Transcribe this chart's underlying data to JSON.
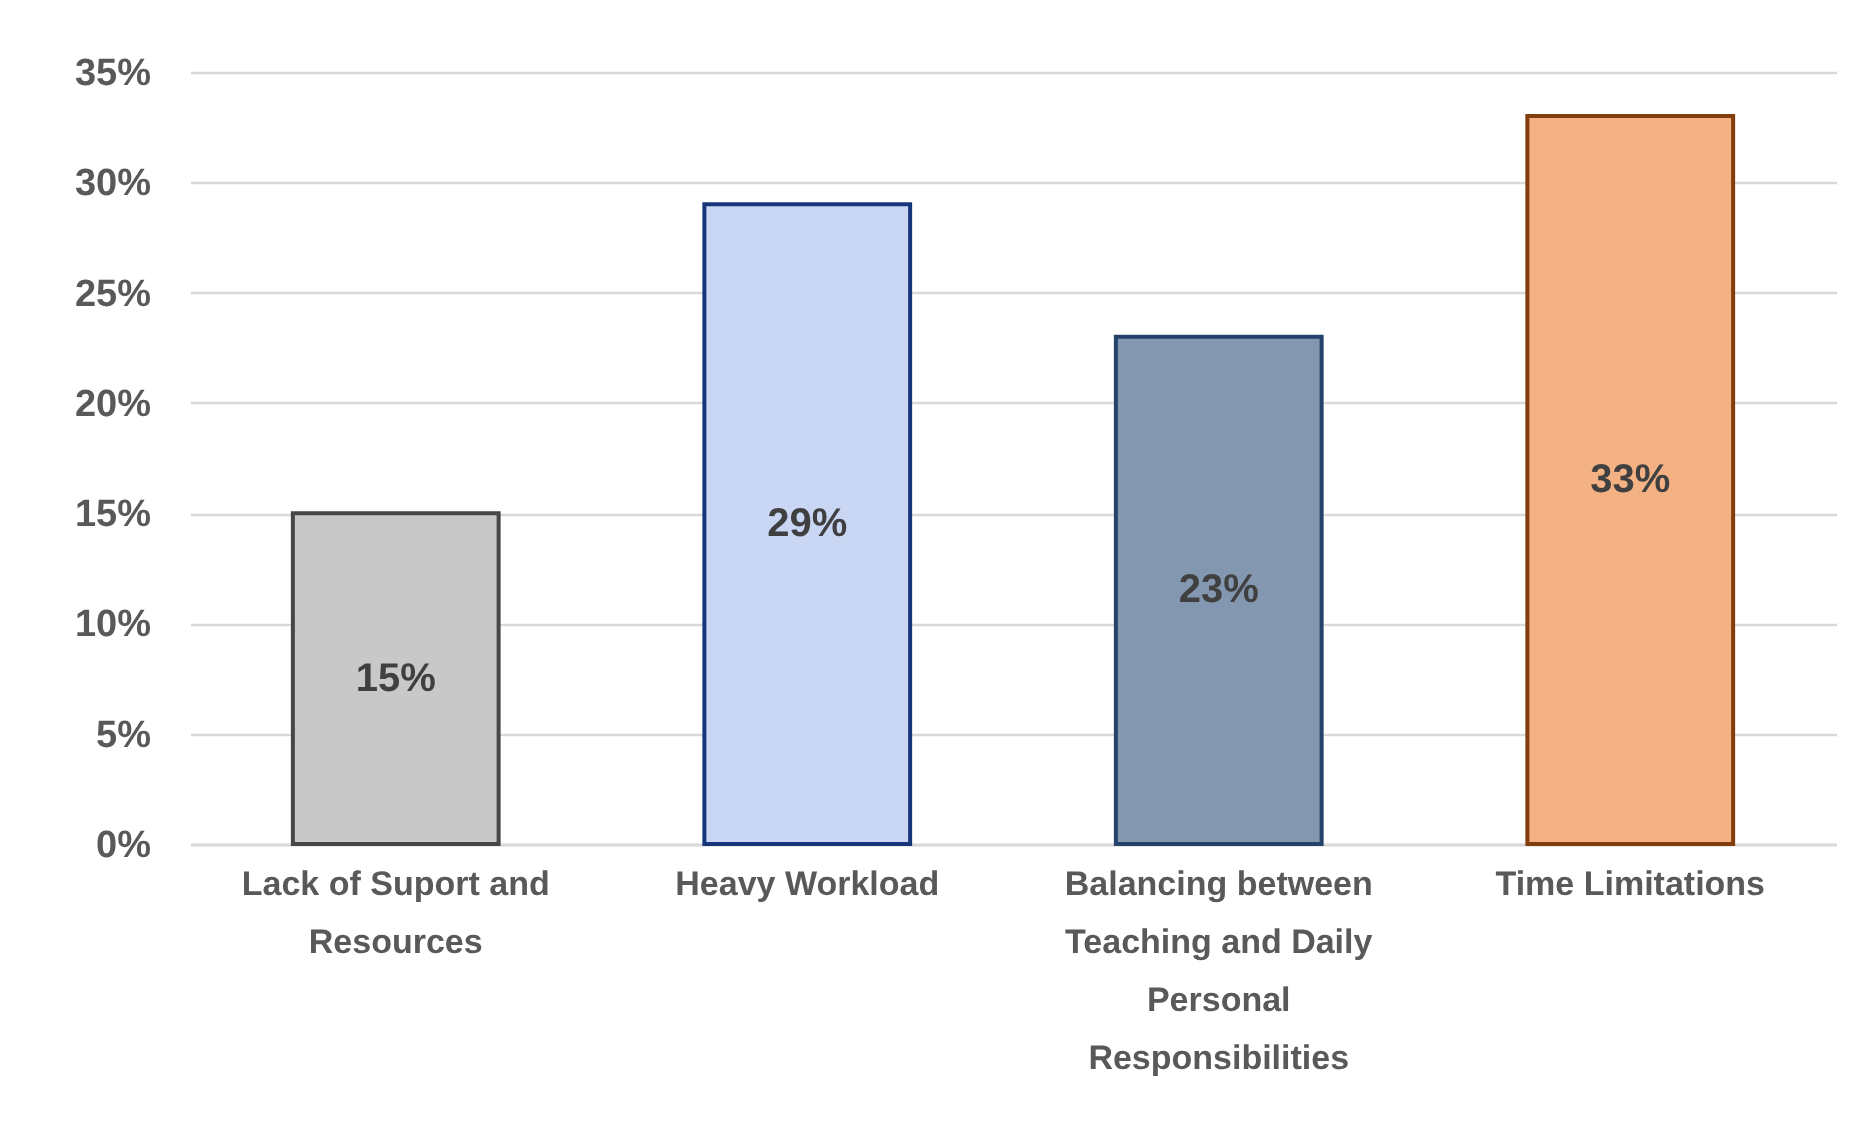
{
  "chart_data": {
    "type": "bar",
    "categories": [
      "Lack of Suport and Resources",
      "Heavy Workload",
      "Balancing between Teaching and Daily Personal Responsibilities",
      "Time Limitations"
    ],
    "values": [
      15,
      29,
      23,
      33
    ],
    "colors": [
      "#c8c8c8",
      "#c9d7f5",
      "#8497b0",
      "#f4b183"
    ],
    "value_labels": [
      "15%",
      "29%",
      "23%",
      "33%"
    ],
    "ylim": [
      0,
      35
    ],
    "yticks": [
      {
        "value": 0,
        "label": "0%"
      },
      {
        "value": 5,
        "label": "5%"
      },
      {
        "value": 10,
        "label": "10%"
      },
      {
        "value": 15,
        "label": "15%"
      },
      {
        "value": 20,
        "label": "20%"
      },
      {
        "value": 25,
        "label": "25%"
      },
      {
        "value": 30,
        "label": "30%"
      },
      {
        "value": 35,
        "label": "35%"
      }
    ],
    "grid": "y"
  }
}
